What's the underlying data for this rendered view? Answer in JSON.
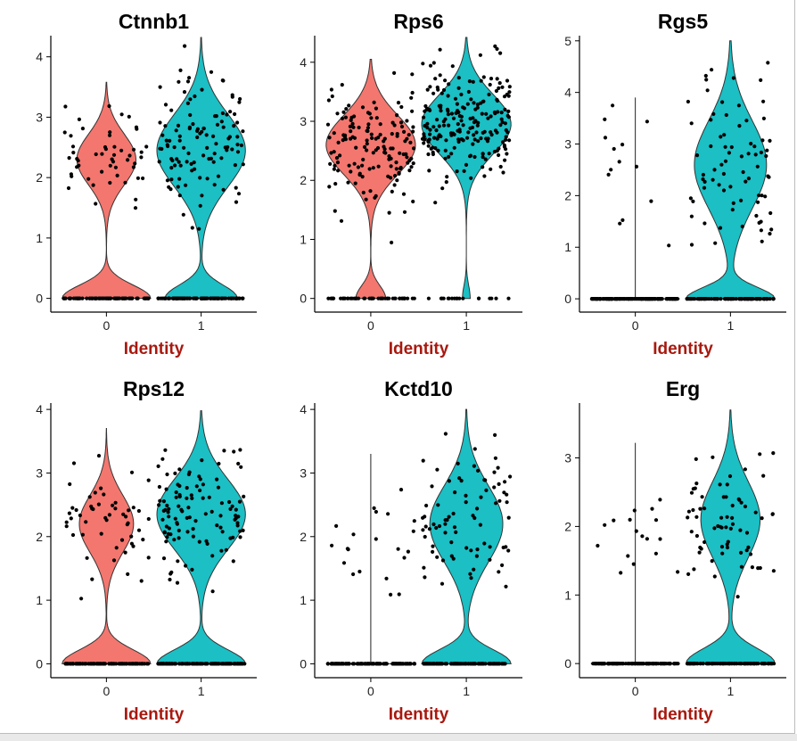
{
  "figure": {
    "xlabel": "Identity",
    "xlabel_color": "#a8190f",
    "fill_colors": [
      "#f8766d",
      "#00bfc4"
    ],
    "fill_colors_rendered": [
      "#f3776f",
      "#1bbfc4"
    ]
  },
  "chart_data": [
    {
      "type": "violin",
      "title": "Ctnnb1",
      "xlabel": "Identity",
      "categories": [
        "0",
        "1"
      ],
      "ylim": [
        -0.05,
        4.35
      ],
      "yticks": [
        0,
        1,
        2,
        3,
        4
      ],
      "grid": false,
      "legend": "none",
      "violins": [
        {
          "category": "0",
          "max": 3.58,
          "zero_fraction": 0.6,
          "nonzero_mean": 2.3,
          "nonzero_sd": 0.42,
          "n_points": 130
        },
        {
          "category": "1",
          "max": 4.32,
          "zero_fraction": 0.45,
          "nonzero_mean": 2.45,
          "nonzero_sd": 0.6,
          "n_points": 210
        }
      ]
    },
    {
      "type": "violin",
      "title": "Rps6",
      "xlabel": "Identity",
      "categories": [
        "0",
        "1"
      ],
      "ylim": [
        -0.05,
        4.45
      ],
      "yticks": [
        0,
        1,
        2,
        3,
        4
      ],
      "grid": false,
      "legend": "none",
      "violins": [
        {
          "category": "0",
          "max": 4.05,
          "zero_fraction": 0.25,
          "nonzero_mean": 2.6,
          "nonzero_sd": 0.5,
          "n_points": 200
        },
        {
          "category": "1",
          "max": 4.42,
          "zero_fraction": 0.08,
          "nonzero_mean": 2.95,
          "nonzero_sd": 0.5,
          "n_points": 230
        }
      ]
    },
    {
      "type": "violin",
      "title": "Rgs5",
      "xlabel": "Identity",
      "categories": [
        "0",
        "1"
      ],
      "ylim": [
        -0.05,
        5.1
      ],
      "yticks": [
        0,
        1,
        2,
        3,
        4,
        5
      ],
      "grid": false,
      "legend": "none",
      "violins": [
        {
          "category": "0",
          "max": 3.9,
          "zero_fraction": 0.9,
          "nonzero_mean": 2.5,
          "nonzero_sd": 0.7,
          "n_points": 140,
          "degenerate": true
        },
        {
          "category": "1",
          "max": 5.0,
          "zero_fraction": 0.55,
          "nonzero_mean": 2.6,
          "nonzero_sd": 0.85,
          "n_points": 170
        }
      ]
    },
    {
      "type": "violin",
      "title": "Rps12",
      "xlabel": "Identity",
      "categories": [
        "0",
        "1"
      ],
      "ylim": [
        -0.05,
        4.1
      ],
      "yticks": [
        0,
        1,
        2,
        3,
        4
      ],
      "grid": false,
      "legend": "none",
      "violins": [
        {
          "category": "0",
          "max": 3.7,
          "zero_fraction": 0.62,
          "nonzero_mean": 2.2,
          "nonzero_sd": 0.45,
          "n_points": 140
        },
        {
          "category": "1",
          "max": 3.98,
          "zero_fraction": 0.5,
          "nonzero_mean": 2.35,
          "nonzero_sd": 0.55,
          "n_points": 220
        }
      ]
    },
    {
      "type": "violin",
      "title": "Kctd10",
      "xlabel": "Identity",
      "categories": [
        "0",
        "1"
      ],
      "ylim": [
        -0.05,
        4.1
      ],
      "yticks": [
        0,
        1,
        2,
        3,
        4
      ],
      "grid": false,
      "legend": "none",
      "violins": [
        {
          "category": "0",
          "max": 3.3,
          "zero_fraction": 0.85,
          "nonzero_mean": 2.0,
          "nonzero_sd": 0.5,
          "n_points": 140,
          "degenerate": true
        },
        {
          "category": "1",
          "max": 4.0,
          "zero_fraction": 0.55,
          "nonzero_mean": 2.2,
          "nonzero_sd": 0.6,
          "n_points": 180
        }
      ]
    },
    {
      "type": "violin",
      "title": "Erg",
      "xlabel": "Identity",
      "categories": [
        "0",
        "1"
      ],
      "ylim": [
        -0.05,
        3.8
      ],
      "yticks": [
        0,
        1,
        2,
        3
      ],
      "grid": false,
      "legend": "none",
      "violins": [
        {
          "category": "0",
          "max": 3.22,
          "zero_fraction": 0.88,
          "nonzero_mean": 1.85,
          "nonzero_sd": 0.45,
          "n_points": 140,
          "degenerate": true
        },
        {
          "category": "1",
          "max": 3.7,
          "zero_fraction": 0.6,
          "nonzero_mean": 2.1,
          "nonzero_sd": 0.55,
          "n_points": 170
        }
      ]
    }
  ]
}
